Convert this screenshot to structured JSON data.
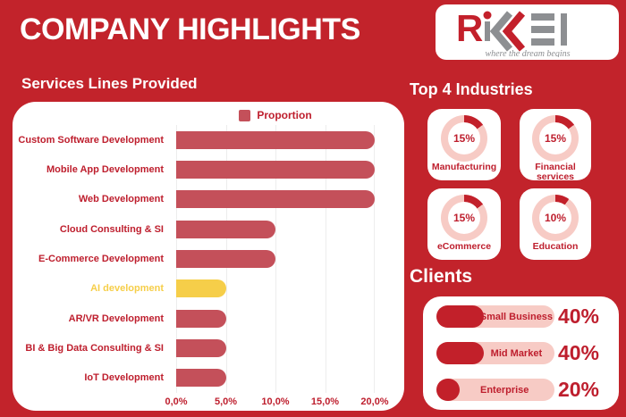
{
  "header": {
    "title": "COMPANY HIGHLIGHTS"
  },
  "logo": {
    "brand": "RIKKEI",
    "tagline": "where the dream begins"
  },
  "sections": {
    "services_heading": "Services Lines Provided",
    "industries_heading": "Top 4 Industries",
    "clients_heading": "Clients"
  },
  "colors": {
    "background": "#C2232B",
    "dark_red_text": "#BE1E2D",
    "bar_red": "#C4505A",
    "accent_yellow": "#F6CE49",
    "pink": "#F7CBC5",
    "fill_red": "#C2202A",
    "logo_red": "#C3202B",
    "logo_gray": "#8D8F92",
    "gridline": "#EDEDED",
    "panel_white": "#FFFFFF"
  },
  "chart_data": [
    {
      "type": "bar",
      "orientation": "horizontal",
      "title": "Services Lines Provided",
      "legend": [
        "Proportion"
      ],
      "legend_position": "top-center",
      "categories": [
        "Custom Software Development",
        "Mobile App Development",
        "Web Development",
        "Cloud Consulting & SI",
        "E-Commerce Development",
        "AI development",
        "AR/VR Development",
        "BI & Big Data Consulting & SI",
        "IoT Development"
      ],
      "values": [
        20,
        20,
        20,
        10,
        10,
        5,
        5,
        5,
        5
      ],
      "unit": "percent",
      "xlim": [
        0,
        20
      ],
      "x_ticks": [
        "0,0%",
        "5,0%",
        "10,0%",
        "15,0%",
        "20,0%"
      ],
      "grid": "vertical",
      "bar_colors": [
        "#C4505A",
        "#C4505A",
        "#C4505A",
        "#C4505A",
        "#C4505A",
        "#F6CE49",
        "#C4505A",
        "#C4505A",
        "#C4505A"
      ],
      "label_colors": [
        "#BE1E2D",
        "#BE1E2D",
        "#BE1E2D",
        "#BE1E2D",
        "#BE1E2D",
        "#F6CE49",
        "#BE1E2D",
        "#BE1E2D",
        "#BE1E2D"
      ]
    },
    {
      "type": "pie",
      "subtype": "donut-grid",
      "title": "Top 4 Industries",
      "items": [
        {
          "label": "Manufacturing",
          "value": 15,
          "value_label": "15%"
        },
        {
          "label": "Financial services",
          "value": 15,
          "value_label": "15%"
        },
        {
          "label": "eCommerce",
          "value": 15,
          "value_label": "15%"
        },
        {
          "label": "Education",
          "value": 10,
          "value_label": "10%"
        }
      ]
    },
    {
      "type": "bar",
      "subtype": "pill-progress",
      "title": "Clients",
      "categories": [
        "Small Business",
        "Mid Market",
        "Enterprise"
      ],
      "values": [
        40,
        40,
        20
      ],
      "value_labels": [
        "40%",
        "40%",
        "20%"
      ]
    }
  ]
}
